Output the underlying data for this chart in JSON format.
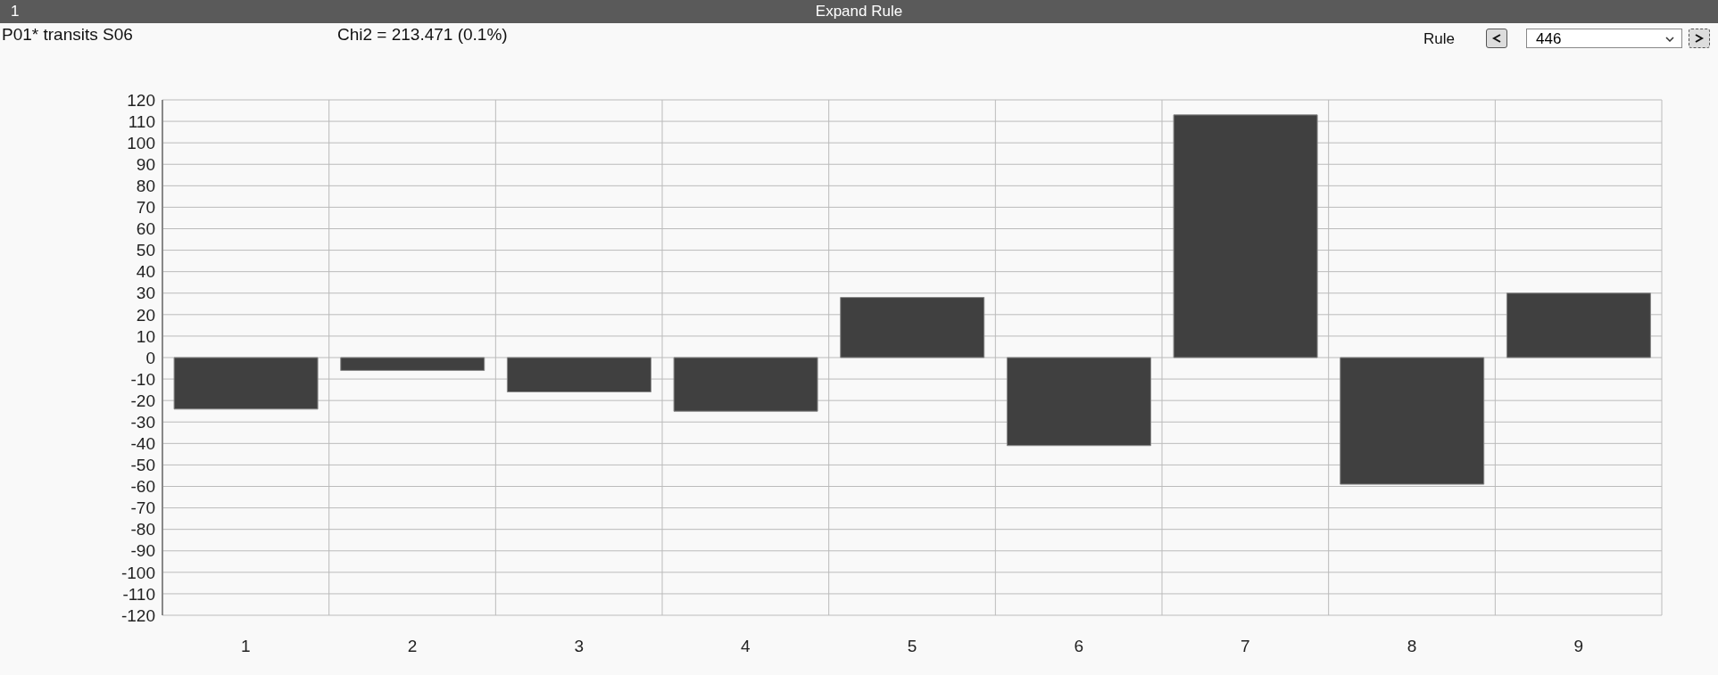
{
  "chart_data": {
    "type": "bar",
    "title": "Expand Rule",
    "subtitle": "P01* transits S06",
    "annotations": [
      "1",
      "Chi2 = 213.471 (0.1%)",
      "Rule",
      "446"
    ],
    "categories": [
      "1",
      "2",
      "3",
      "4",
      "5",
      "6",
      "7",
      "8",
      "9"
    ],
    "values": [
      -24,
      -6,
      -16,
      -25,
      28,
      -41,
      113,
      -59,
      30
    ],
    "color": "#404040",
    "ylim": [
      -120,
      120
    ],
    "yticks": [
      -120,
      -110,
      -100,
      -90,
      -80,
      -70,
      -60,
      -50,
      -40,
      -30,
      -20,
      -10,
      0,
      10,
      20,
      30,
      40,
      50,
      60,
      70,
      80,
      90,
      100,
      110,
      120
    ],
    "grid": true
  }
}
